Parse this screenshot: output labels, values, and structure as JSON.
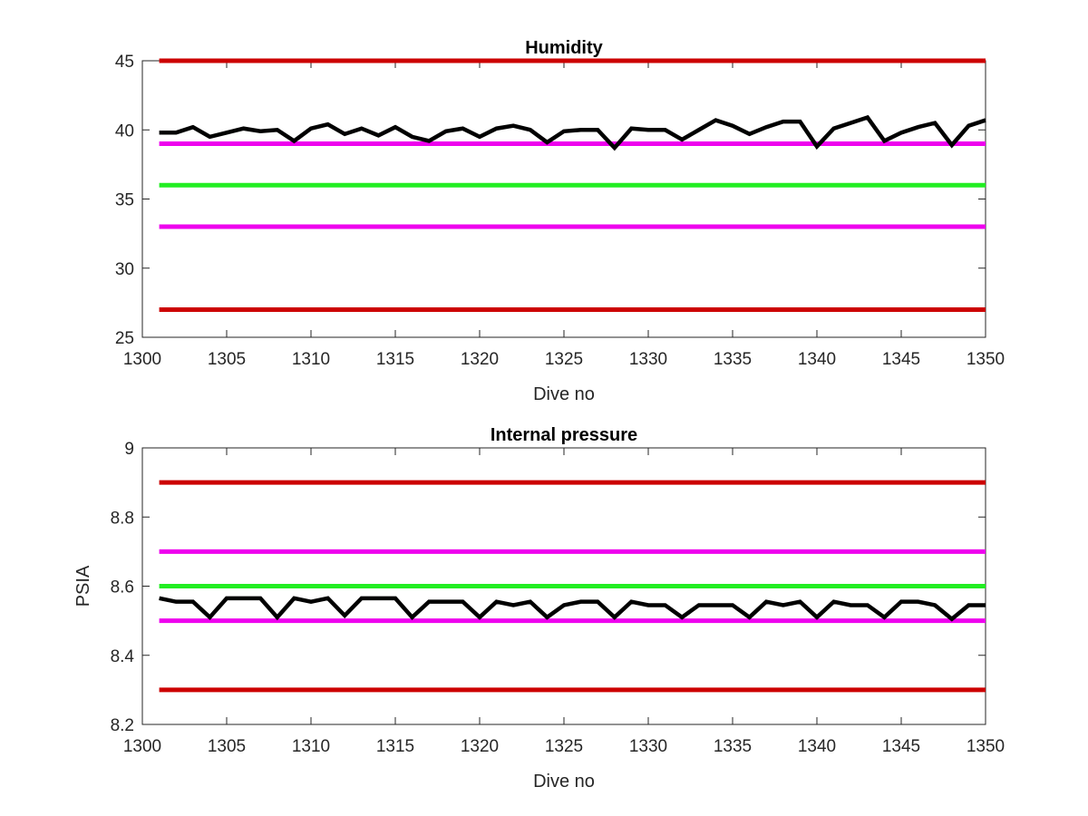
{
  "chart_data": [
    {
      "type": "line",
      "title": "Humidity",
      "xlabel": "Dive no",
      "ylabel": "",
      "xlim": [
        1300,
        1350
      ],
      "ylim": [
        25,
        45
      ],
      "x_ticks": [
        "1300",
        "1305",
        "1310",
        "1315",
        "1320",
        "1325",
        "1330",
        "1335",
        "1340",
        "1345",
        "1350"
      ],
      "y_ticks": [
        "25",
        "30",
        "35",
        "40",
        "45"
      ],
      "x_tick_values": [
        1300,
        1305,
        1310,
        1315,
        1320,
        1325,
        1330,
        1335,
        1340,
        1345,
        1350
      ],
      "y_tick_values": [
        25,
        30,
        35,
        40,
        45
      ],
      "grid": false,
      "reference_lines": [
        {
          "y": 45,
          "color": "#cc0000"
        },
        {
          "y": 39,
          "color": "#ee00ee"
        },
        {
          "y": 36,
          "color": "#22ee22"
        },
        {
          "y": 33,
          "color": "#ee00ee"
        },
        {
          "y": 27,
          "color": "#cc0000"
        }
      ],
      "series": [
        {
          "color": "#000000",
          "x": [
            1301,
            1302,
            1303,
            1304,
            1305,
            1306,
            1307,
            1308,
            1309,
            1310,
            1311,
            1312,
            1313,
            1314,
            1315,
            1316,
            1317,
            1318,
            1319,
            1320,
            1321,
            1322,
            1323,
            1324,
            1325,
            1326,
            1327,
            1328,
            1329,
            1330,
            1331,
            1332,
            1333,
            1334,
            1335,
            1336,
            1337,
            1338,
            1339,
            1340,
            1341,
            1342,
            1343,
            1344,
            1345,
            1346,
            1347,
            1348,
            1349,
            1350
          ],
          "values": [
            39.8,
            39.8,
            40.2,
            39.5,
            39.8,
            40.1,
            39.9,
            40.0,
            39.2,
            40.1,
            40.4,
            39.7,
            40.1,
            39.6,
            40.2,
            39.5,
            39.2,
            39.9,
            40.1,
            39.5,
            40.1,
            40.3,
            40.0,
            39.1,
            39.9,
            40.0,
            40.0,
            38.7,
            40.1,
            40.0,
            40.0,
            39.3,
            40.0,
            40.7,
            40.3,
            39.7,
            40.2,
            40.6,
            40.6,
            38.8,
            40.1,
            40.5,
            40.9,
            39.2,
            39.8,
            40.2,
            40.5,
            38.9,
            40.3,
            40.7
          ]
        }
      ]
    },
    {
      "type": "line",
      "title": "Internal pressure",
      "xlabel": "Dive no",
      "ylabel": "PSIA",
      "xlim": [
        1300,
        1350
      ],
      "ylim": [
        8.2,
        9.0
      ],
      "x_ticks": [
        "1300",
        "1305",
        "1310",
        "1315",
        "1320",
        "1325",
        "1330",
        "1335",
        "1340",
        "1345",
        "1350"
      ],
      "y_ticks": [
        "8.2",
        "8.4",
        "8.6",
        "8.8",
        "9"
      ],
      "x_tick_values": [
        1300,
        1305,
        1310,
        1315,
        1320,
        1325,
        1330,
        1335,
        1340,
        1345,
        1350
      ],
      "y_tick_values": [
        8.2,
        8.4,
        8.6,
        8.8,
        9.0
      ],
      "grid": false,
      "reference_lines": [
        {
          "y": 8.9,
          "color": "#cc0000"
        },
        {
          "y": 8.7,
          "color": "#ee00ee"
        },
        {
          "y": 8.6,
          "color": "#22ee22"
        },
        {
          "y": 8.5,
          "color": "#ee00ee"
        },
        {
          "y": 8.3,
          "color": "#cc0000"
        }
      ],
      "series": [
        {
          "color": "#000000",
          "x": [
            1301,
            1302,
            1303,
            1304,
            1305,
            1306,
            1307,
            1308,
            1309,
            1310,
            1311,
            1312,
            1313,
            1314,
            1315,
            1316,
            1317,
            1318,
            1319,
            1320,
            1321,
            1322,
            1323,
            1324,
            1325,
            1326,
            1327,
            1328,
            1329,
            1330,
            1331,
            1332,
            1333,
            1334,
            1335,
            1336,
            1337,
            1338,
            1339,
            1340,
            1341,
            1342,
            1343,
            1344,
            1345,
            1346,
            1347,
            1348,
            1349,
            1350
          ],
          "values": [
            8.565,
            8.555,
            8.555,
            8.51,
            8.565,
            8.565,
            8.565,
            8.51,
            8.565,
            8.555,
            8.565,
            8.515,
            8.565,
            8.565,
            8.565,
            8.51,
            8.555,
            8.555,
            8.555,
            8.51,
            8.555,
            8.545,
            8.555,
            8.51,
            8.545,
            8.555,
            8.555,
            8.51,
            8.555,
            8.545,
            8.545,
            8.51,
            8.545,
            8.545,
            8.545,
            8.51,
            8.555,
            8.545,
            8.555,
            8.51,
            8.555,
            8.545,
            8.545,
            8.51,
            8.555,
            8.555,
            8.545,
            8.505,
            8.545,
            8.545
          ]
        }
      ]
    }
  ]
}
